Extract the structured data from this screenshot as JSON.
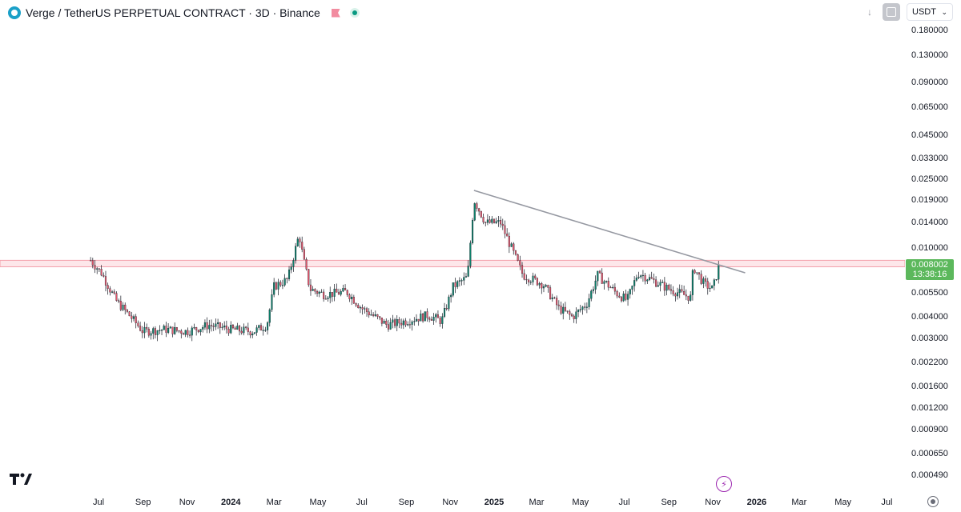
{
  "header": {
    "title": "Verge / TetherUS PERPETUAL CONTRACT · 3D · Binance",
    "currency": "USDT"
  },
  "price_tag": {
    "price": "0.008002",
    "countdown": "13:38:16",
    "color": "#5cb85c"
  },
  "colors": {
    "up": "#0f7f6a",
    "down": "#e0566b",
    "trendline": "#9598a1",
    "resistance": "#f4a1ab"
  },
  "icons": {
    "logo": "verge-logo-icon",
    "flag": "flag-icon",
    "status": "market-open-icon",
    "download": "arrow-down-icon",
    "fullscreen": "fullscreen-icon",
    "tradingview": "tradingview-logo-icon",
    "bolt": "lightning-icon",
    "settings": "gear-icon"
  },
  "price_axis": [
    "0.180000",
    "0.130000",
    "0.090000",
    "0.065000",
    "0.045000",
    "0.033000",
    "0.025000",
    "0.019000",
    "0.014000",
    "0.010000",
    "0.005500",
    "0.004000",
    "0.003000",
    "0.002200",
    "0.001600",
    "0.001200",
    "0.000900",
    "0.000650",
    "0.000490"
  ],
  "time_axis": [
    {
      "label": "Jul",
      "bold": false
    },
    {
      "label": "Sep",
      "bold": false
    },
    {
      "label": "Nov",
      "bold": false
    },
    {
      "label": "2024",
      "bold": true
    },
    {
      "label": "Mar",
      "bold": false
    },
    {
      "label": "May",
      "bold": false
    },
    {
      "label": "Jul",
      "bold": false
    },
    {
      "label": "Sep",
      "bold": false
    },
    {
      "label": "Nov",
      "bold": false
    },
    {
      "label": "2025",
      "bold": true
    },
    {
      "label": "Mar",
      "bold": false
    },
    {
      "label": "May",
      "bold": false
    },
    {
      "label": "Jul",
      "bold": false
    },
    {
      "label": "Sep",
      "bold": false
    },
    {
      "label": "Nov",
      "bold": false
    },
    {
      "label": "2026",
      "bold": true
    },
    {
      "label": "Mar",
      "bold": false
    },
    {
      "label": "May",
      "bold": false
    },
    {
      "label": "Jul",
      "bold": false
    }
  ],
  "chart_data": {
    "type": "candlestick",
    "scale": "log",
    "resistance_zone": [
      0.0078,
      0.0085
    ],
    "trendline": [
      {
        "date": "2024-12-04",
        "price": 0.0215
      },
      {
        "date": "2025-12-16",
        "price": 0.0072
      }
    ],
    "close_path": [
      {
        "date": "2023-06-20",
        "price": 0.0085
      },
      {
        "date": "2023-07-05",
        "price": 0.0072
      },
      {
        "date": "2023-07-25",
        "price": 0.005
      },
      {
        "date": "2023-08-15",
        "price": 0.004
      },
      {
        "date": "2023-09-01",
        "price": 0.0033
      },
      {
        "date": "2023-10-01",
        "price": 0.0034
      },
      {
        "date": "2023-11-01",
        "price": 0.0033
      },
      {
        "date": "2023-12-01",
        "price": 0.0036
      },
      {
        "date": "2024-01-01",
        "price": 0.0034
      },
      {
        "date": "2024-02-01",
        "price": 0.0033
      },
      {
        "date": "2024-02-20",
        "price": 0.0036
      },
      {
        "date": "2024-03-01",
        "price": 0.006
      },
      {
        "date": "2024-03-20",
        "price": 0.0066
      },
      {
        "date": "2024-04-05",
        "price": 0.012
      },
      {
        "date": "2024-04-10",
        "price": 0.009
      },
      {
        "date": "2024-04-20",
        "price": 0.0058
      },
      {
        "date": "2024-05-10",
        "price": 0.0054
      },
      {
        "date": "2024-06-10",
        "price": 0.0056
      },
      {
        "date": "2024-07-01",
        "price": 0.0045
      },
      {
        "date": "2024-07-20",
        "price": 0.004
      },
      {
        "date": "2024-08-05",
        "price": 0.0036
      },
      {
        "date": "2024-09-01",
        "price": 0.0038
      },
      {
        "date": "2024-10-01",
        "price": 0.0041
      },
      {
        "date": "2024-10-20",
        "price": 0.0038
      },
      {
        "date": "2024-11-05",
        "price": 0.006
      },
      {
        "date": "2024-11-25",
        "price": 0.0068
      },
      {
        "date": "2024-12-04",
        "price": 0.019
      },
      {
        "date": "2024-12-20",
        "price": 0.014
      },
      {
        "date": "2025-01-10",
        "price": 0.014
      },
      {
        "date": "2025-01-25",
        "price": 0.01
      },
      {
        "date": "2025-02-10",
        "price": 0.007
      },
      {
        "date": "2025-03-10",
        "price": 0.0062
      },
      {
        "date": "2025-04-01",
        "price": 0.0045
      },
      {
        "date": "2025-04-20",
        "price": 0.004
      },
      {
        "date": "2025-05-10",
        "price": 0.0048
      },
      {
        "date": "2025-05-25",
        "price": 0.007
      },
      {
        "date": "2025-06-20",
        "price": 0.0055
      },
      {
        "date": "2025-07-05",
        "price": 0.005
      },
      {
        "date": "2025-07-20",
        "price": 0.0072
      },
      {
        "date": "2025-08-10",
        "price": 0.0065
      },
      {
        "date": "2025-09-01",
        "price": 0.0058
      },
      {
        "date": "2025-10-01",
        "price": 0.0052
      },
      {
        "date": "2025-10-05",
        "price": 0.0078
      },
      {
        "date": "2025-10-20",
        "price": 0.0062
      },
      {
        "date": "2025-11-01",
        "price": 0.0058
      },
      {
        "date": "2025-11-10",
        "price": 0.008
      }
    ]
  }
}
